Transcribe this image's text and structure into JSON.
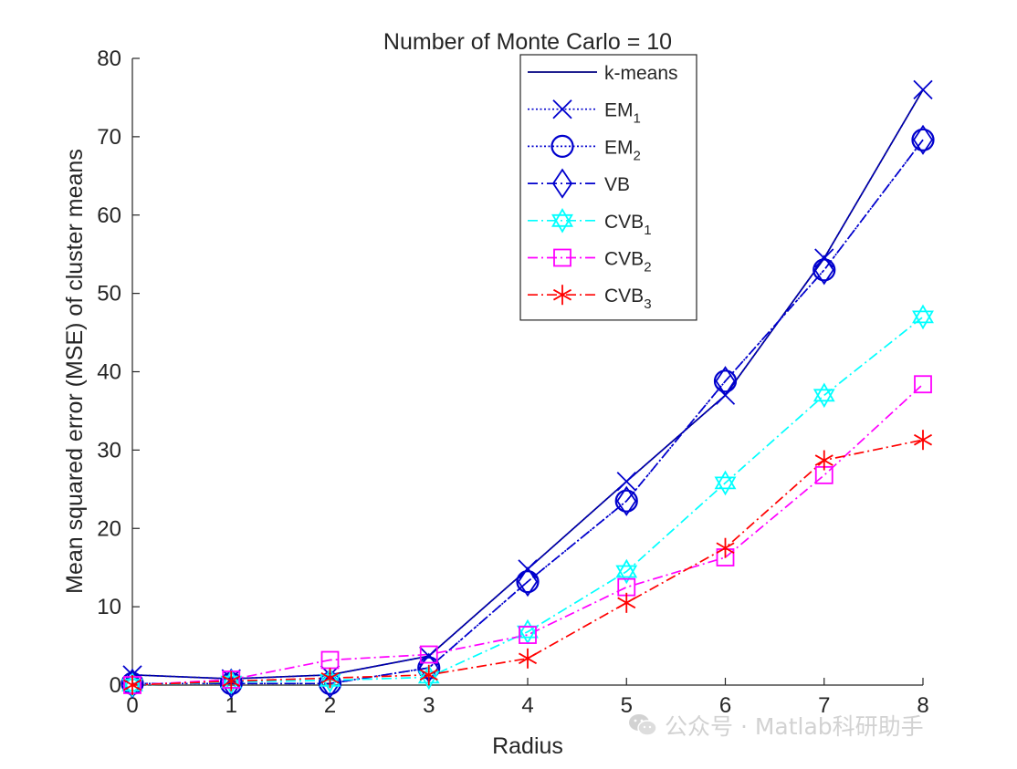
{
  "chart_data": {
    "type": "line",
    "title": "Number of Monte Carlo = 10",
    "xlabel": "Radius",
    "ylabel": "Mean squared error (MSE) of cluster means",
    "xlim": [
      0,
      8
    ],
    "ylim": [
      0,
      80
    ],
    "xticks": [
      "0",
      "1",
      "2",
      "3",
      "4",
      "5",
      "6",
      "7",
      "8"
    ],
    "yticks": [
      "0",
      "10",
      "20",
      "30",
      "40",
      "50",
      "60",
      "70",
      "80"
    ],
    "legend_position": "top-right",
    "x": [
      0,
      1,
      2,
      3,
      4,
      5,
      6,
      7,
      8
    ],
    "series": [
      {
        "name": "k-means",
        "sub": "",
        "color": "#000080",
        "dash": "solid",
        "marker": "none",
        "values": [
          1.3,
          0.8,
          1.3,
          3.7,
          14.8,
          26.0,
          37.0,
          54.5,
          76.0
        ]
      },
      {
        "name": "EM",
        "sub": "1",
        "color": "#0000cd",
        "dash": "dotted",
        "marker": "x",
        "values": [
          1.3,
          0.8,
          1.3,
          3.7,
          14.8,
          26.0,
          37.0,
          54.5,
          76.0
        ]
      },
      {
        "name": "EM",
        "sub": "2",
        "color": "#0000cd",
        "dash": "dotted",
        "marker": "circle",
        "values": [
          0.2,
          0.2,
          0.2,
          2.2,
          13.2,
          23.5,
          38.8,
          53.0,
          69.6
        ]
      },
      {
        "name": "VB",
        "sub": "",
        "color": "#0000cd",
        "dash": "dashdot",
        "marker": "diamond",
        "values": [
          0.2,
          0.2,
          0.2,
          2.2,
          13.2,
          23.5,
          38.8,
          53.0,
          69.6
        ]
      },
      {
        "name": "CVB",
        "sub": "1",
        "color": "#00ffff",
        "dash": "dashdot",
        "marker": "hexagram",
        "values": [
          0.0,
          0.4,
          0.6,
          1.0,
          6.8,
          14.5,
          25.8,
          37.0,
          47.0
        ]
      },
      {
        "name": "CVB",
        "sub": "2",
        "color": "#ff00ff",
        "dash": "dashdot",
        "marker": "square",
        "values": [
          0.0,
          0.7,
          3.2,
          3.9,
          6.4,
          12.5,
          16.3,
          26.8,
          38.4
        ]
      },
      {
        "name": "CVB",
        "sub": "3",
        "color": "#ff0000",
        "dash": "dashdot",
        "marker": "asterisk",
        "values": [
          0.0,
          0.5,
          0.9,
          1.3,
          3.4,
          10.5,
          17.5,
          28.7,
          31.3
        ]
      }
    ]
  },
  "watermark": {
    "text": "公众号 · Matlab科研助手",
    "icon": "wechat-icon"
  }
}
